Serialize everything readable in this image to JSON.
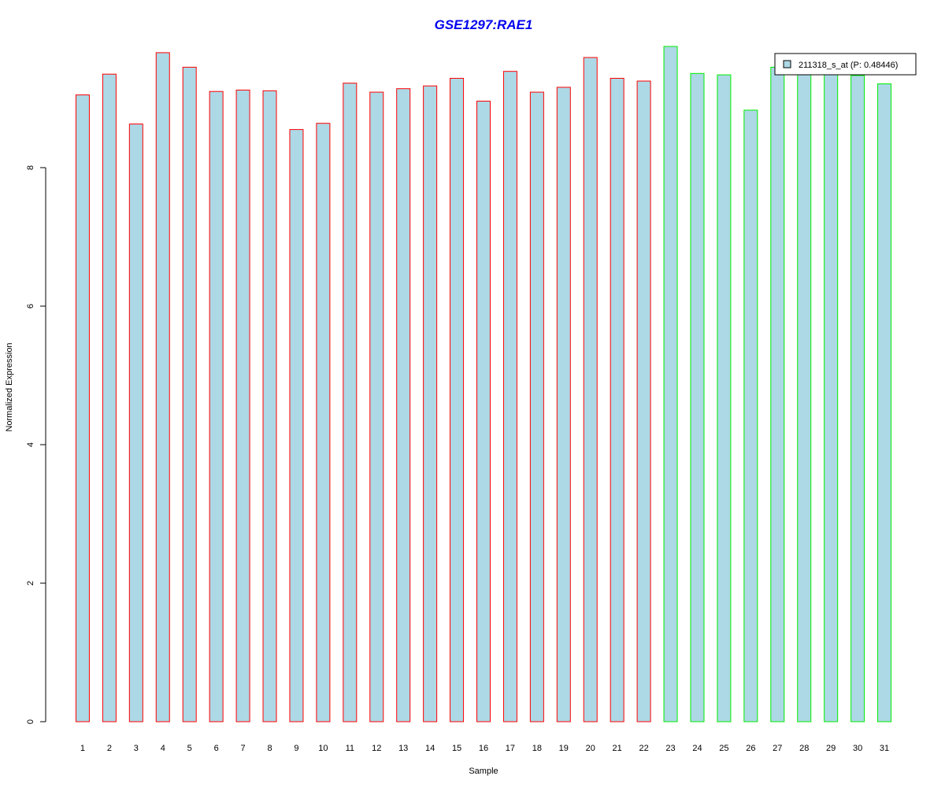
{
  "chart_data": {
    "type": "bar",
    "title": "GSE1297:RAE1",
    "title_color": "#0000ee",
    "xlabel": "Sample",
    "ylabel": "Normalized Expression",
    "ylim": [
      0,
      9.75
    ],
    "yticks": [
      0,
      2,
      4,
      6,
      8
    ],
    "grid": false,
    "bar_fill": "#add8e6",
    "legend": {
      "position": "top-right",
      "entries": [
        "211318_s_at (P: 0.48446)"
      ]
    },
    "categories": [
      "1",
      "2",
      "3",
      "4",
      "5",
      "6",
      "7",
      "8",
      "9",
      "10",
      "11",
      "12",
      "13",
      "14",
      "15",
      "16",
      "17",
      "18",
      "19",
      "20",
      "21",
      "22",
      "23",
      "24",
      "25",
      "26",
      "27",
      "28",
      "29",
      "30",
      "31"
    ],
    "values": [
      9.05,
      9.35,
      8.63,
      9.66,
      9.45,
      9.1,
      9.12,
      9.11,
      8.55,
      8.64,
      9.22,
      9.09,
      9.14,
      9.18,
      9.29,
      8.96,
      9.39,
      9.09,
      9.16,
      9.59,
      9.29,
      9.25,
      9.75,
      9.36,
      9.34,
      8.83,
      9.45,
      9.4,
      9.38,
      9.33,
      9.21
    ],
    "group_colors": [
      "#ff0000",
      "#ff0000",
      "#ff0000",
      "#ff0000",
      "#ff0000",
      "#ff0000",
      "#ff0000",
      "#ff0000",
      "#ff0000",
      "#ff0000",
      "#ff0000",
      "#ff0000",
      "#ff0000",
      "#ff0000",
      "#ff0000",
      "#ff0000",
      "#ff0000",
      "#ff0000",
      "#ff0000",
      "#ff0000",
      "#ff0000",
      "#ff0000",
      "#00ee00",
      "#00ee00",
      "#00ee00",
      "#00ee00",
      "#00ee00",
      "#00ee00",
      "#00ee00",
      "#00ee00",
      "#00ee00"
    ]
  }
}
